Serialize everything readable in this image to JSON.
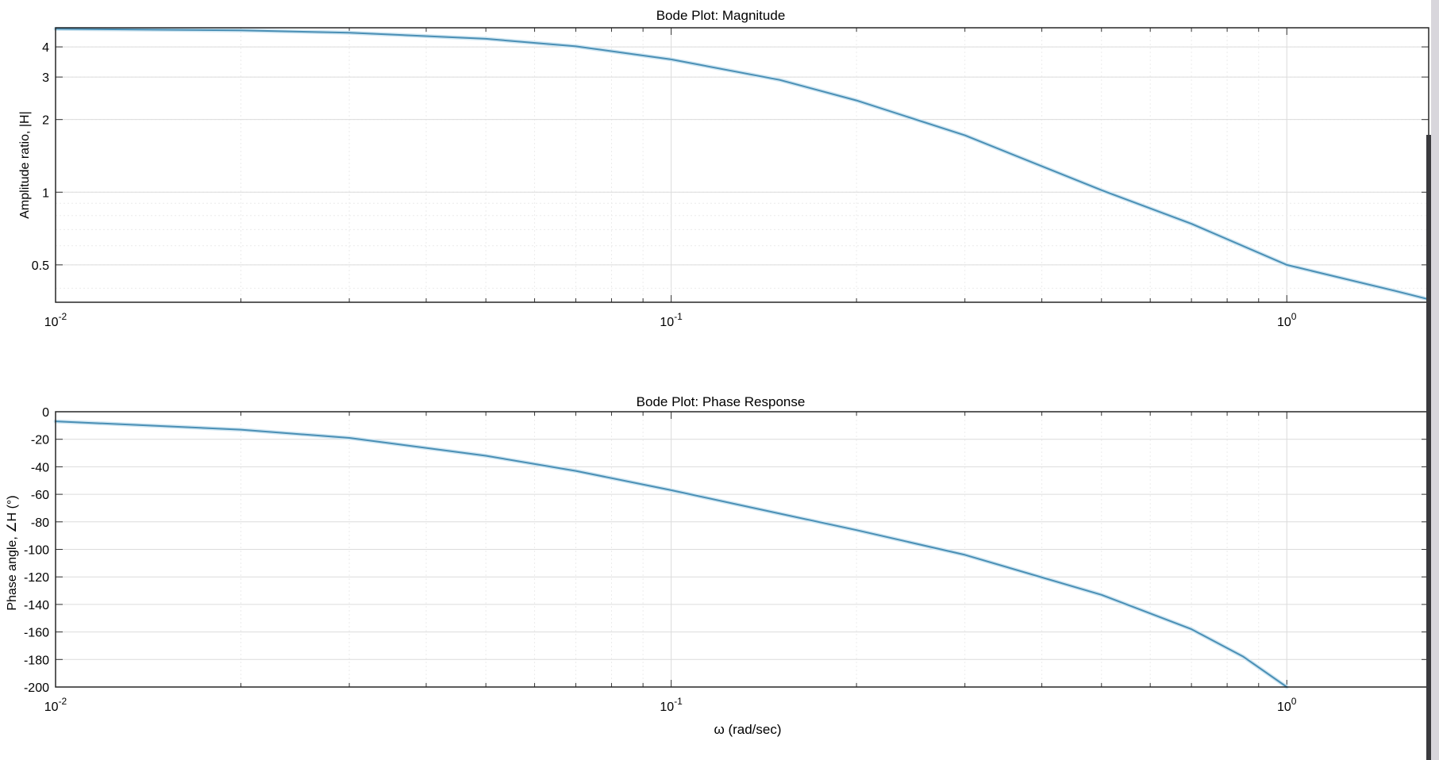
{
  "chart_data": [
    {
      "type": "line",
      "title": "Bode Plot: Magnitude",
      "xlabel": "",
      "ylabel": "Amplitude ratio, |H|",
      "xscale": "log",
      "yscale": "log",
      "xlim": [
        0.01,
        1.7
      ],
      "ylim": [
        0.35,
        4.8
      ],
      "grid": true,
      "x_ticks": [
        0.01,
        0.1,
        1
      ],
      "x_tick_labels": [
        {
          "base": "10",
          "exp": "-2"
        },
        {
          "base": "10",
          "exp": "-1"
        },
        {
          "base": "10",
          "exp": "0"
        }
      ],
      "y_ticks": [
        0.5,
        1,
        2,
        3,
        4
      ],
      "y_tick_labels": [
        "0.5",
        "1",
        "2",
        "3",
        "4"
      ],
      "line_color": "#4a8fb5",
      "series": [
        {
          "x": [
            0.01,
            0.02,
            0.03,
            0.05,
            0.07,
            0.1,
            0.15,
            0.2,
            0.3,
            0.5,
            0.7,
            1.0,
            1.5,
            1.7
          ],
          "values": [
            4.75,
            4.68,
            4.58,
            4.32,
            4.02,
            3.55,
            2.92,
            2.4,
            1.72,
            1.02,
            0.74,
            0.5,
            0.39,
            0.36
          ]
        }
      ]
    },
    {
      "type": "line",
      "title": "Bode Plot: Phase Response",
      "xlabel": "ω (rad/sec)",
      "ylabel": "Phase angle, ∠H (°)",
      "xscale": "log",
      "yscale": "linear",
      "xlim": [
        0.01,
        1.7
      ],
      "ylim": [
        -200,
        0
      ],
      "grid": true,
      "x_ticks": [
        0.01,
        0.1,
        1
      ],
      "x_tick_labels": [
        {
          "base": "10",
          "exp": "-2"
        },
        {
          "base": "10",
          "exp": "-1"
        },
        {
          "base": "10",
          "exp": "0"
        }
      ],
      "y_ticks": [
        0,
        -20,
        -40,
        -60,
        -80,
        -100,
        -120,
        -140,
        -160,
        -180,
        -200
      ],
      "y_tick_labels": [
        "0",
        "-20",
        "-40",
        "-60",
        "-80",
        "-100",
        "-120",
        "-140",
        "-160",
        "-180",
        "-200"
      ],
      "line_color": "#4a8fb5",
      "series": [
        {
          "x": [
            0.01,
            0.02,
            0.03,
            0.05,
            0.07,
            0.1,
            0.15,
            0.2,
            0.3,
            0.5,
            0.7,
            0.85,
            1.0
          ],
          "values": [
            -7,
            -13,
            -19,
            -32,
            -43,
            -57,
            -74,
            -86,
            -104,
            -133,
            -158,
            -178,
            -200
          ]
        }
      ]
    }
  ]
}
